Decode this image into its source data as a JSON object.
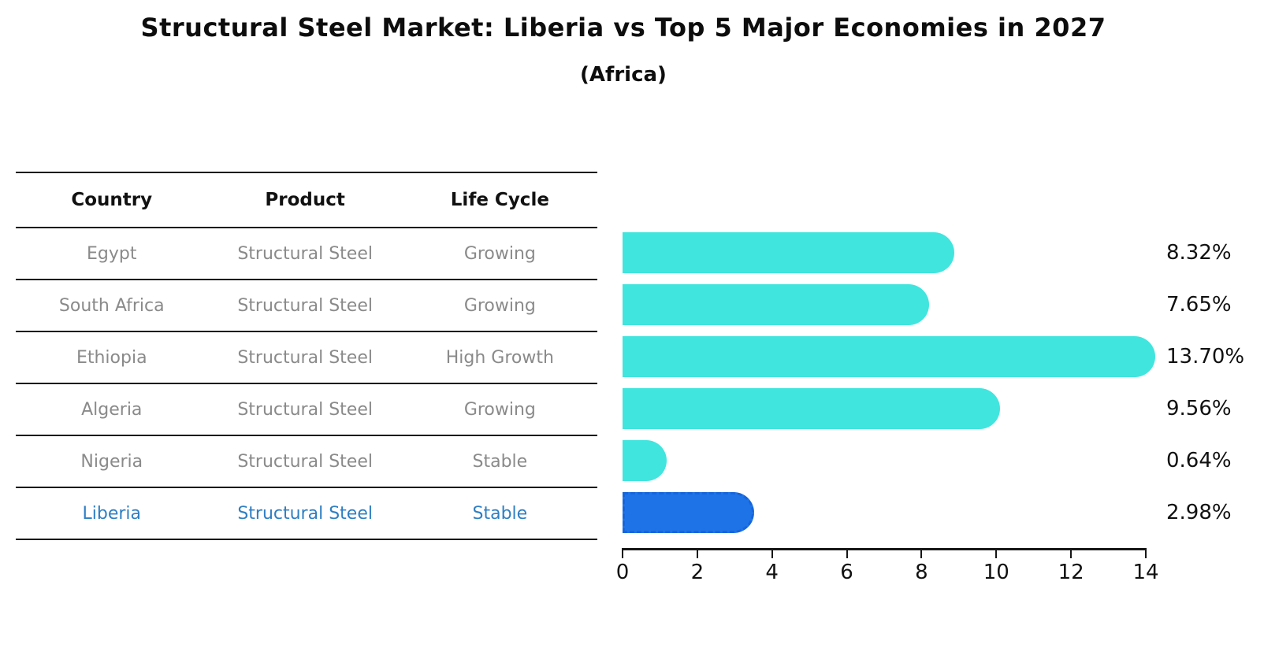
{
  "title": "Structural Steel Market: Liberia vs Top 5 Major Economies in 2027",
  "subtitle": "(Africa)",
  "table": {
    "headers": [
      "Country",
      "Product",
      "Life Cycle"
    ],
    "rows": [
      {
        "country": "Egypt",
        "product": "Structural Steel",
        "life_cycle": "Growing",
        "highlighted": false
      },
      {
        "country": "South Africa",
        "product": "Structural Steel",
        "life_cycle": "Growing",
        "highlighted": false
      },
      {
        "country": "Ethiopia",
        "product": "Structural Steel",
        "life_cycle": "High Growth",
        "highlighted": false
      },
      {
        "country": "Algeria",
        "product": "Structural Steel",
        "life_cycle": "Growing",
        "highlighted": false
      },
      {
        "country": "Nigeria",
        "product": "Structural Steel",
        "life_cycle": "Stable",
        "highlighted": false
      },
      {
        "country": "Liberia",
        "product": "Structural Steel",
        "life_cycle": "Stable",
        "highlighted": true
      }
    ]
  },
  "chart_data": {
    "type": "bar",
    "orientation": "horizontal",
    "title": "Structural Steel Market: Liberia vs Top 5 Major Economies in 2027 (Africa)",
    "categories": [
      "Egypt",
      "South Africa",
      "Ethiopia",
      "Algeria",
      "Nigeria",
      "Liberia"
    ],
    "values": [
      8.32,
      7.65,
      13.7,
      9.56,
      0.64,
      2.98
    ],
    "value_labels": [
      "8.32%",
      "7.65%",
      "13.70%",
      "9.56%",
      "0.64%",
      "2.98%"
    ],
    "xlim": [
      0,
      14
    ],
    "x_ticks": [
      "0",
      "2",
      "4",
      "6",
      "8",
      "10",
      "12",
      "14"
    ],
    "grid": false,
    "legend": false,
    "highlight_index": 5,
    "colors": {
      "default_bar": "#40E5DE",
      "highlight_bar": "#1E73E6",
      "highlight_bar_border": "#1565DC",
      "highlight_text": "#2E7FC3",
      "row_text": "#8A8A8A",
      "axis_text": "#111111"
    }
  }
}
